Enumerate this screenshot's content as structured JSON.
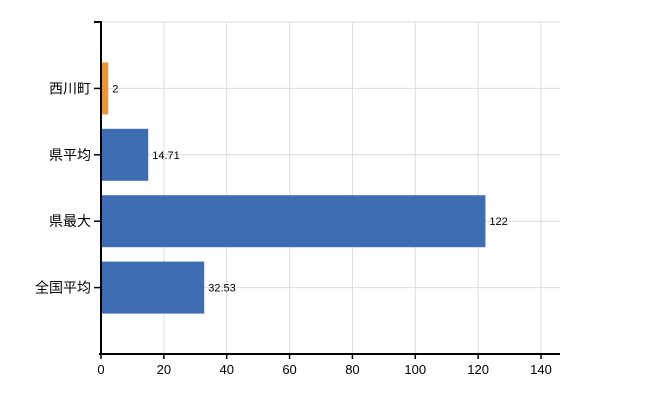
{
  "chart_data": {
    "type": "bar",
    "orientation": "horizontal",
    "categories": [
      "西川町",
      "県平均",
      "県最大",
      "全国平均"
    ],
    "values": [
      2,
      14.71,
      122,
      32.53
    ],
    "value_labels": [
      "2",
      "14.71",
      "122",
      "32.53"
    ],
    "bar_colors": [
      "#ED9438",
      "#3E6EB2",
      "#3E6EB2",
      "#3E6EB2"
    ],
    "x_ticks": [
      0,
      20,
      40,
      60,
      80,
      100,
      120,
      140
    ],
    "x_tick_labels": [
      "0",
      "20",
      "40",
      "60",
      "80",
      "100",
      "120",
      "140"
    ],
    "xlim": [
      0,
      146
    ],
    "grid": true,
    "legend": "none"
  },
  "colors": {
    "highlight_bar": "#ED9438",
    "default_bar": "#3E6EB2",
    "gridline": "#DCDCDC",
    "axis": "#000000",
    "text": "#000000",
    "background": "#FFFFFF"
  }
}
